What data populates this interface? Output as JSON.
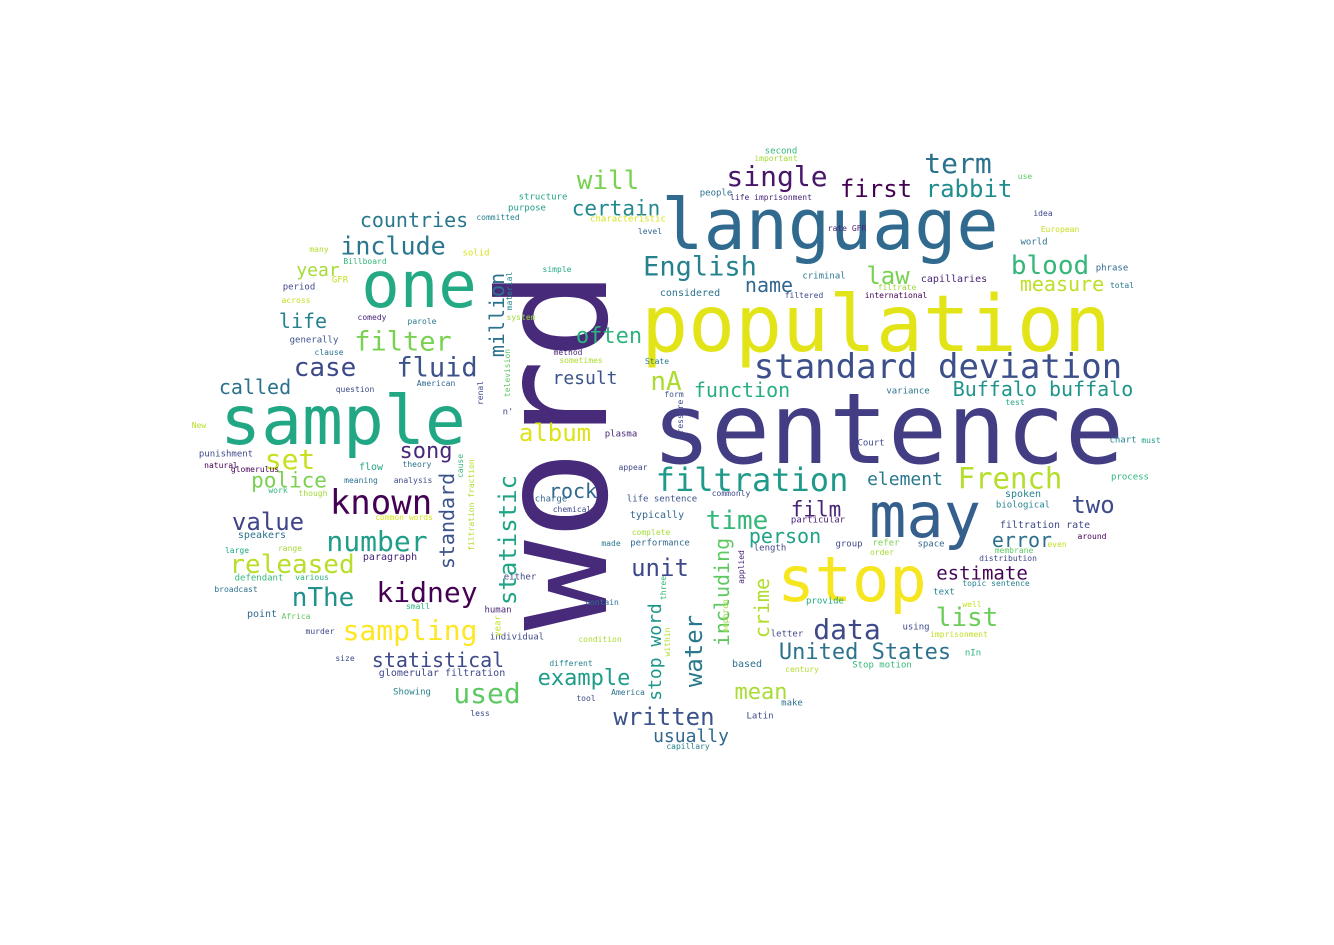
{
  "words": [
    {
      "text": "word",
      "color": "#472a7a",
      "vertical": true
    },
    {
      "text": "sentence",
      "color": "#433d84"
    },
    {
      "text": "population",
      "color": "#e2e418"
    },
    {
      "text": "language",
      "color": "#306a8e"
    },
    {
      "text": "sample",
      "color": "#22a785"
    },
    {
      "text": "one",
      "color": "#23a983"
    },
    {
      "text": "may",
      "color": "#355f8d"
    },
    {
      "text": "stop",
      "color": "#f6e620"
    },
    {
      "text": "standard deviation",
      "color": "#3c4f8a"
    },
    {
      "text": "filtration",
      "color": "#1f9a8a"
    },
    {
      "text": "English",
      "color": "#26818e"
    },
    {
      "text": "single",
      "color": "#481769"
    },
    {
      "text": "term",
      "color": "#2c718e"
    },
    {
      "text": "first",
      "color": "#440154"
    },
    {
      "text": "rabbit",
      "color": "#228d8d"
    },
    {
      "text": "will",
      "color": "#7ad151"
    },
    {
      "text": "certain",
      "color": "#23898e"
    },
    {
      "text": "blood",
      "color": "#35b779"
    },
    {
      "text": "law",
      "color": "#7ad151"
    },
    {
      "text": "name",
      "color": "#31668e"
    },
    {
      "text": "measure",
      "color": "#bddf26"
    },
    {
      "text": "countries",
      "color": "#2a788e"
    },
    {
      "text": "include",
      "color": "#2a768e"
    },
    {
      "text": "year",
      "color": "#a5db36"
    },
    {
      "text": "filter",
      "color": "#7ad151"
    },
    {
      "text": "fluid",
      "color": "#3b528b"
    },
    {
      "text": "case",
      "color": "#3e4989"
    },
    {
      "text": "life",
      "color": "#26828e"
    },
    {
      "text": "called",
      "color": "#2c728e"
    },
    {
      "text": "million",
      "color": "#2c728e",
      "vertical": true
    },
    {
      "text": "often",
      "color": "#2fb47c"
    },
    {
      "text": "nA",
      "color": "#addc30"
    },
    {
      "text": "result",
      "color": "#3b528b"
    },
    {
      "text": "function",
      "color": "#29af7f"
    },
    {
      "text": "Buffalo buffalo",
      "color": "#1f948c"
    },
    {
      "text": "album",
      "color": "#dde318"
    },
    {
      "text": "set",
      "color": "#c8e020"
    },
    {
      "text": "song",
      "color": "#482878"
    },
    {
      "text": "police",
      "color": "#7ad151"
    },
    {
      "text": "known",
      "color": "#440154"
    },
    {
      "text": "value",
      "color": "#414487"
    },
    {
      "text": "number",
      "color": "#1f9e89"
    },
    {
      "text": "rock",
      "color": "#31688e"
    },
    {
      "text": "statistic",
      "color": "#20a486",
      "vertical": true
    },
    {
      "text": "standard",
      "color": "#3b528b",
      "vertical": true
    },
    {
      "text": "French",
      "color": "#b5de2b"
    },
    {
      "text": "element",
      "color": "#2a788e"
    },
    {
      "text": "two",
      "color": "#3e4a89"
    },
    {
      "text": "time",
      "color": "#35b779"
    },
    {
      "text": "film",
      "color": "#482475"
    },
    {
      "text": "person",
      "color": "#20a386"
    },
    {
      "text": "error",
      "color": "#2d708e"
    },
    {
      "text": "estimate",
      "color": "#450457"
    },
    {
      "text": "list",
      "color": "#6ccd5a"
    },
    {
      "text": "released",
      "color": "#b8de29"
    },
    {
      "text": "nThe",
      "color": "#21918c"
    },
    {
      "text": "kidney",
      "color": "#440154"
    },
    {
      "text": "unit",
      "color": "#3e4989"
    },
    {
      "text": "sampling",
      "color": "#fde725"
    },
    {
      "text": "water",
      "color": "#2a788e",
      "vertical": true
    },
    {
      "text": "including",
      "color": "#5ec962",
      "vertical": true
    },
    {
      "text": "crime",
      "color": "#b2dd2d",
      "vertical": true
    },
    {
      "text": "data",
      "color": "#3e4989"
    },
    {
      "text": "stop word",
      "color": "#1f968b",
      "vertical": true
    },
    {
      "text": "United States",
      "color": "#2c728e"
    },
    {
      "text": "statistical",
      "color": "#3e4989"
    },
    {
      "text": "example",
      "color": "#1e9c89"
    },
    {
      "text": "used",
      "color": "#5ec962"
    },
    {
      "text": "mean",
      "color": "#a8db34"
    },
    {
      "text": "written",
      "color": "#3b528b"
    },
    {
      "text": "usually",
      "color": "#31688e"
    },
    {
      "text": "second",
      "color": "#35b779"
    },
    {
      "text": "important",
      "color": "#a5db36"
    },
    {
      "text": "people",
      "color": "#2c728e"
    },
    {
      "text": "life imprisonment",
      "color": "#482878"
    },
    {
      "text": "use",
      "color": "#5ec962"
    },
    {
      "text": "structure",
      "color": "#20a386"
    },
    {
      "text": "purpose",
      "color": "#1f9e89"
    },
    {
      "text": "characteristic",
      "color": "#d8e219"
    },
    {
      "text": "committed",
      "color": "#26828e"
    },
    {
      "text": "level",
      "color": "#31688e"
    },
    {
      "text": "rate GFR",
      "color": "#482475"
    },
    {
      "text": "idea",
      "color": "#3e4989"
    },
    {
      "text": "European",
      "color": "#c8e020"
    },
    {
      "text": "world",
      "color": "#2c728e"
    },
    {
      "text": "many",
      "color": "#b2dd2d"
    },
    {
      "text": "solid",
      "color": "#d8e219"
    },
    {
      "text": "Billboard",
      "color": "#35b779"
    },
    {
      "text": "GFR",
      "color": "#c2df23"
    },
    {
      "text": "period",
      "color": "#3e4989"
    },
    {
      "text": "across",
      "color": "#c8e020"
    },
    {
      "text": "material",
      "color": "#25848e",
      "vertical": true
    },
    {
      "text": "simple",
      "color": "#22a884"
    },
    {
      "text": "criminal",
      "color": "#2a788e"
    },
    {
      "text": "filtrate",
      "color": "#9bd93c"
    },
    {
      "text": "filtered",
      "color": "#3e4a89"
    },
    {
      "text": "international",
      "color": "#440154"
    },
    {
      "text": "capillaries",
      "color": "#482475"
    },
    {
      "text": "phrase",
      "color": "#306a8e"
    },
    {
      "text": "total",
      "color": "#2a788e"
    },
    {
      "text": "considered",
      "color": "#2c728e"
    },
    {
      "text": "comedy",
      "color": "#482475"
    },
    {
      "text": "parole",
      "color": "#2a788e"
    },
    {
      "text": "system",
      "color": "#9dd93b"
    },
    {
      "text": "generally",
      "color": "#3b528b"
    },
    {
      "text": "clause",
      "color": "#2c728e"
    },
    {
      "text": "method",
      "color": "#482878"
    },
    {
      "text": "sometimes",
      "color": "#addc30"
    },
    {
      "text": "State",
      "color": "#2a788e"
    },
    {
      "text": "television",
      "color": "#5ec962",
      "vertical": true
    },
    {
      "text": "question",
      "color": "#3e4989"
    },
    {
      "text": "American",
      "color": "#306a8e"
    },
    {
      "text": "renal",
      "color": "#3e4989",
      "vertical": true
    },
    {
      "text": "form",
      "color": "#3b528b"
    },
    {
      "text": "variance",
      "color": "#2c728e"
    },
    {
      "text": "test",
      "color": "#22a884"
    },
    {
      "text": "n'",
      "color": "#3e4989"
    },
    {
      "text": "pressure",
      "color": "#3e4989",
      "vertical": true
    },
    {
      "text": "New",
      "color": "#b8de29"
    },
    {
      "text": "plasma",
      "color": "#482475"
    },
    {
      "text": "Court",
      "color": "#3e4989"
    },
    {
      "text": "chart",
      "color": "#26828e"
    },
    {
      "text": "must",
      "color": "#1f9e89"
    },
    {
      "text": "punishment",
      "color": "#3e4989"
    },
    {
      "text": "natural",
      "color": "#440154"
    },
    {
      "text": "flow",
      "color": "#22a884"
    },
    {
      "text": "theory",
      "color": "#2c728e"
    },
    {
      "text": "cause",
      "color": "#35b779",
      "vertical": true
    },
    {
      "text": "appear",
      "color": "#3e4989"
    },
    {
      "text": "process",
      "color": "#2fb47c"
    },
    {
      "text": "meaning",
      "color": "#2c728e"
    },
    {
      "text": "analysis",
      "color": "#3e4989"
    },
    {
      "text": "glomerulus",
      "color": "#440154"
    },
    {
      "text": "work",
      "color": "#2fb47c"
    },
    {
      "text": "though",
      "color": "#a0da39"
    },
    {
      "text": "filtration fraction",
      "color": "#b2dd2d",
      "vertical": true
    },
    {
      "text": "charge",
      "color": "#31688e"
    },
    {
      "text": "chemical",
      "color": "#3e4989"
    },
    {
      "text": "life sentence",
      "color": "#3b528b"
    },
    {
      "text": "commonly",
      "color": "#3e4989"
    },
    {
      "text": "spoken",
      "color": "#25848e"
    },
    {
      "text": "biological",
      "color": "#25848e"
    },
    {
      "text": "common words",
      "color": "#d8e219"
    },
    {
      "text": "typically",
      "color": "#31688e"
    },
    {
      "text": "particular",
      "color": "#482475"
    },
    {
      "text": "filtration rate",
      "color": "#3e4989"
    },
    {
      "text": "around",
      "color": "#440154"
    },
    {
      "text": "speakers",
      "color": "#2c728e"
    },
    {
      "text": "complete",
      "color": "#a5db36"
    },
    {
      "text": "made",
      "color": "#2a788e"
    },
    {
      "text": "performance",
      "color": "#31688e"
    },
    {
      "text": "group",
      "color": "#3e4989"
    },
    {
      "text": "refer",
      "color": "#7ad151"
    },
    {
      "text": "space",
      "color": "#31688e"
    },
    {
      "text": "membrane",
      "color": "#5ec962"
    },
    {
      "text": "even",
      "color": "#c2df23"
    },
    {
      "text": "large",
      "color": "#22a884"
    },
    {
      "text": "range",
      "color": "#a5db36"
    },
    {
      "text": "order",
      "color": "#a5db36"
    },
    {
      "text": "length",
      "color": "#3e4989"
    },
    {
      "text": "paragraph",
      "color": "#482475"
    },
    {
      "text": "distribution",
      "color": "#3e4989"
    },
    {
      "text": "defendant",
      "color": "#35b779"
    },
    {
      "text": "various",
      "color": "#2fb47c"
    },
    {
      "text": "applied",
      "color": "#482475",
      "vertical": true
    },
    {
      "text": "topic sentence",
      "color": "#26828e"
    },
    {
      "text": "broadcast",
      "color": "#2c728e"
    },
    {
      "text": "either",
      "color": "#3e4989"
    },
    {
      "text": "three",
      "color": "#35b779",
      "vertical": true
    },
    {
      "text": "text",
      "color": "#26828e"
    },
    {
      "text": "small",
      "color": "#2fb47c"
    },
    {
      "text": "contain",
      "color": "#2c728e"
    },
    {
      "text": "provide",
      "color": "#22a884"
    },
    {
      "text": "nephron",
      "color": "#9dd93b",
      "vertical": true
    },
    {
      "text": "well",
      "color": "#c8e020"
    },
    {
      "text": "point",
      "color": "#31688e"
    },
    {
      "text": "Africa",
      "color": "#5ec962"
    },
    {
      "text": "human",
      "color": "#482475"
    },
    {
      "text": "using",
      "color": "#3e4989"
    },
    {
      "text": "imprisonment",
      "color": "#c2df23"
    },
    {
      "text": "murder",
      "color": "#3e4989"
    },
    {
      "text": "individual",
      "color": "#3e4989"
    },
    {
      "text": "within",
      "color": "#b2dd2d",
      "vertical": true
    },
    {
      "text": "letter",
      "color": "#3e4989"
    },
    {
      "text": "size",
      "color": "#3e4989"
    },
    {
      "text": "different",
      "color": "#26828e"
    },
    {
      "text": "based",
      "color": "#2c728e"
    },
    {
      "text": "century",
      "color": "#b2dd2d"
    },
    {
      "text": "Stop motion",
      "color": "#35b779"
    },
    {
      "text": "nIn",
      "color": "#2fb47c"
    },
    {
      "text": "glomerular filtration",
      "color": "#3e4989"
    },
    {
      "text": "Showing",
      "color": "#26828e"
    },
    {
      "text": "America",
      "color": "#2c728e"
    },
    {
      "text": "tool",
      "color": "#3e4989"
    },
    {
      "text": "make",
      "color": "#2c728e"
    },
    {
      "text": "less",
      "color": "#3e4989"
    },
    {
      "text": "Latin",
      "color": "#3e4989"
    },
    {
      "text": "capillary",
      "color": "#26828e"
    },
    {
      "text": "year",
      "color": "#c2df23",
      "vertical": true
    },
    {
      "text": "condition",
      "color": "#addc30"
    }
  ]
}
